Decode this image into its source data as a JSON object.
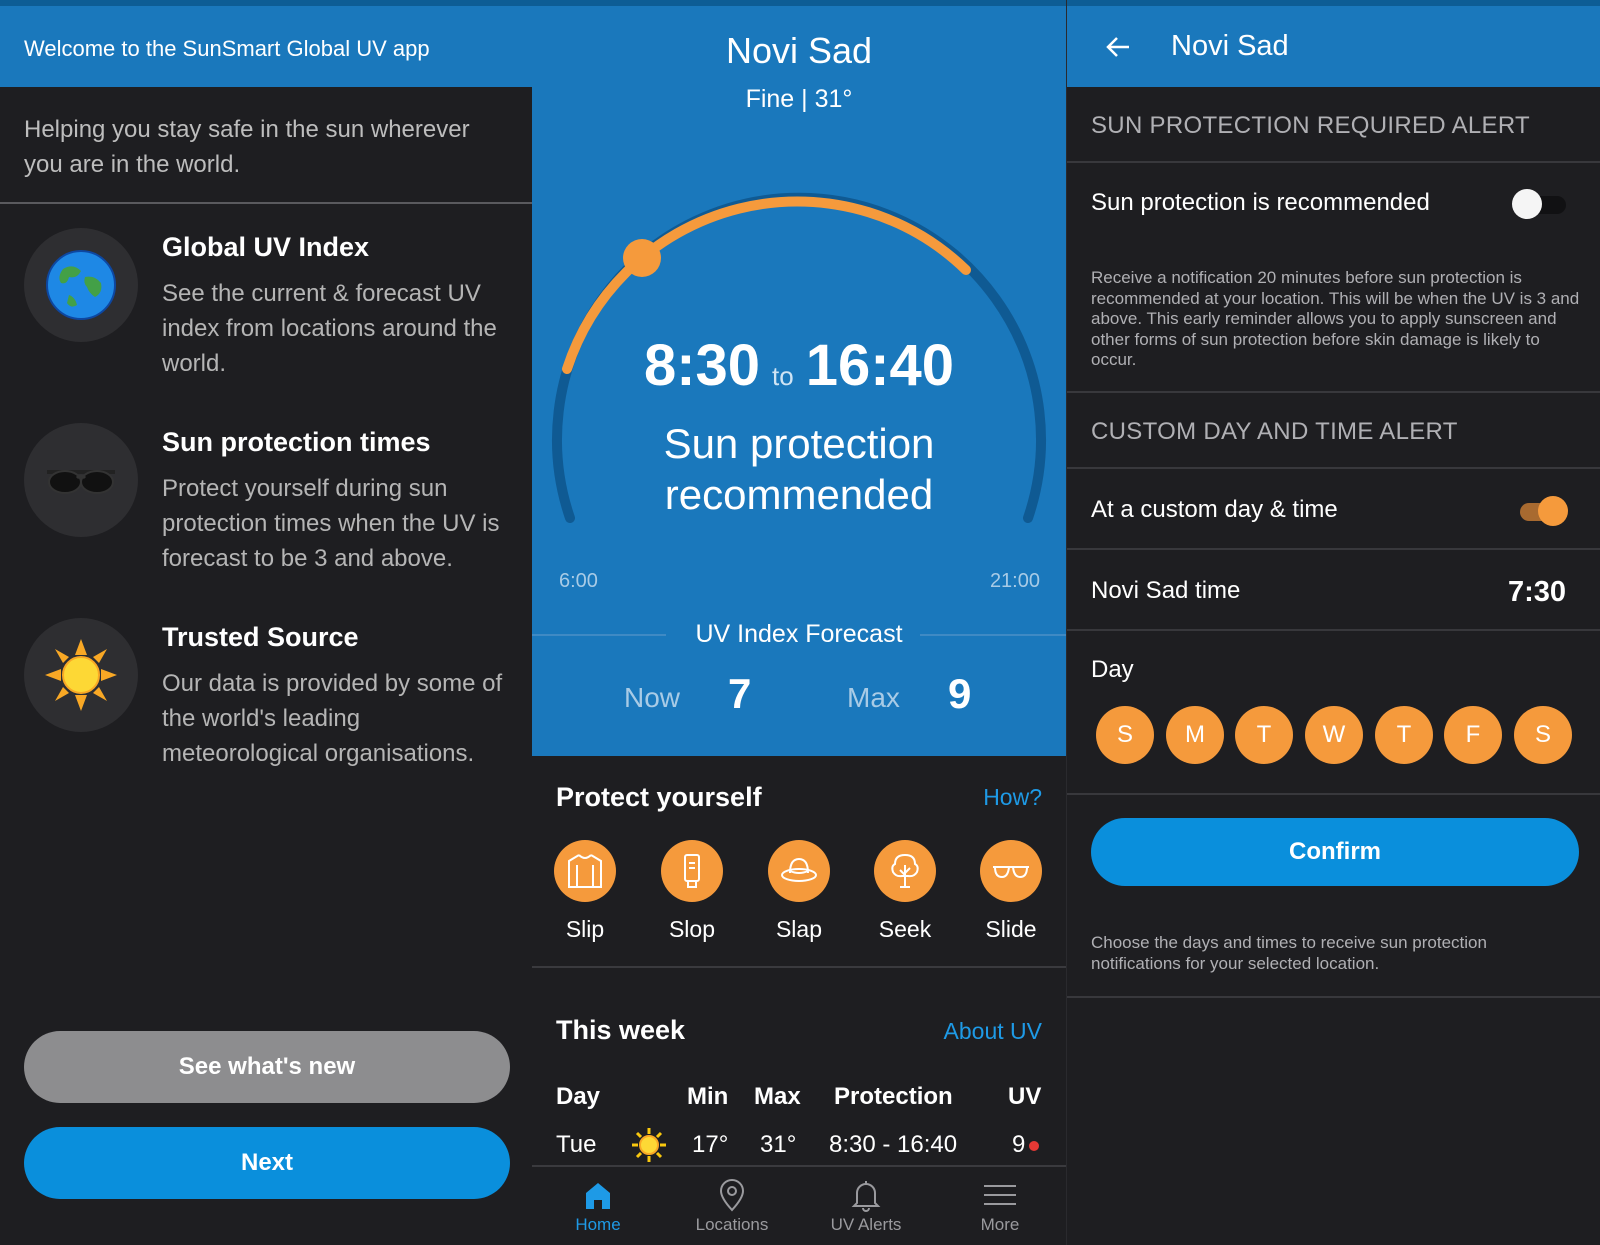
{
  "welcome": {
    "title": "Welcome to the SunSmart Global UV app",
    "intro": "Helping you stay safe in the sun wherever you are in the world.",
    "features": [
      {
        "icon": "globe-icon",
        "title": "Global UV Index",
        "desc": "See the current & forecast UV index from locations around the world."
      },
      {
        "icon": "sunglasses-icon",
        "title": "Sun protection times",
        "desc": "Protect yourself during sun protection times when the UV is forecast to be 3 and above."
      },
      {
        "icon": "sun-icon",
        "title": "Trusted Source",
        "desc": "Our data is provided by some of the world's leading meteorological organisations."
      }
    ],
    "secondary_button": "See what's new",
    "primary_button": "Next"
  },
  "home": {
    "city": "Novi Sad",
    "weather": "Fine | 31°",
    "protect_start": "8:30",
    "to_word": "to",
    "protect_end": "16:40",
    "status": "Sun protection recommended",
    "day_start": "6:00",
    "day_end": "21:00",
    "forecast_title": "UV Index Forecast",
    "now_label": "Now",
    "now_value": "7",
    "max_label": "Max",
    "max_value": "9",
    "protect_title": "Protect yourself",
    "how_link": "How?",
    "protect_items": [
      {
        "label": "Slip",
        "icon": "shirt-icon"
      },
      {
        "label": "Slop",
        "icon": "sunscreen-icon"
      },
      {
        "label": "Slap",
        "icon": "hat-icon"
      },
      {
        "label": "Seek",
        "icon": "tree-icon"
      },
      {
        "label": "Slide",
        "icon": "glasses-icon"
      }
    ],
    "week_title": "This week",
    "about_link": "About UV",
    "week_headers": {
      "day": "Day",
      "min": "Min",
      "max": "Max",
      "protection": "Protection",
      "uv": "UV"
    },
    "week_rows": [
      {
        "day": "Tue",
        "icon": "sun-icon",
        "min": "17°",
        "max": "31°",
        "protection": "8:30 - 16:40",
        "uv": "9",
        "uv_color": "#e53935"
      }
    ],
    "nav": [
      {
        "label": "Home",
        "icon": "home-icon",
        "active": true
      },
      {
        "label": "Locations",
        "icon": "location-pin-icon",
        "active": false
      },
      {
        "label": "UV Alerts",
        "icon": "bell-icon",
        "active": false
      },
      {
        "label": "More",
        "icon": "menu-icon",
        "active": false
      }
    ]
  },
  "alerts": {
    "title": "Novi Sad",
    "section1": "SUN PROTECTION REQUIRED ALERT",
    "toggle1_label": "Sun protection is recommended",
    "toggle1_on": false,
    "help1": "Receive a notification 20 minutes before sun protection is recommended at your location. This will be when the UV is 3 and above. This early reminder allows you to apply sunscreen and other forms of sun protection before skin damage is likely to occur.",
    "section2": "CUSTOM DAY AND TIME ALERT",
    "toggle2_label": "At a custom day & time",
    "toggle2_on": true,
    "time_label": "Novi Sad time",
    "time_value": "7:30",
    "day_label": "Day",
    "days": [
      "S",
      "M",
      "T",
      "W",
      "T",
      "F",
      "S"
    ],
    "confirm": "Confirm",
    "help2": "Choose the days and times to receive sun protection notifications for your selected location."
  },
  "colors": {
    "brand_blue": "#1a78bc",
    "accent_orange": "#f59a3c",
    "button_blue": "#0a8fdc",
    "background": "#1e1e21"
  }
}
